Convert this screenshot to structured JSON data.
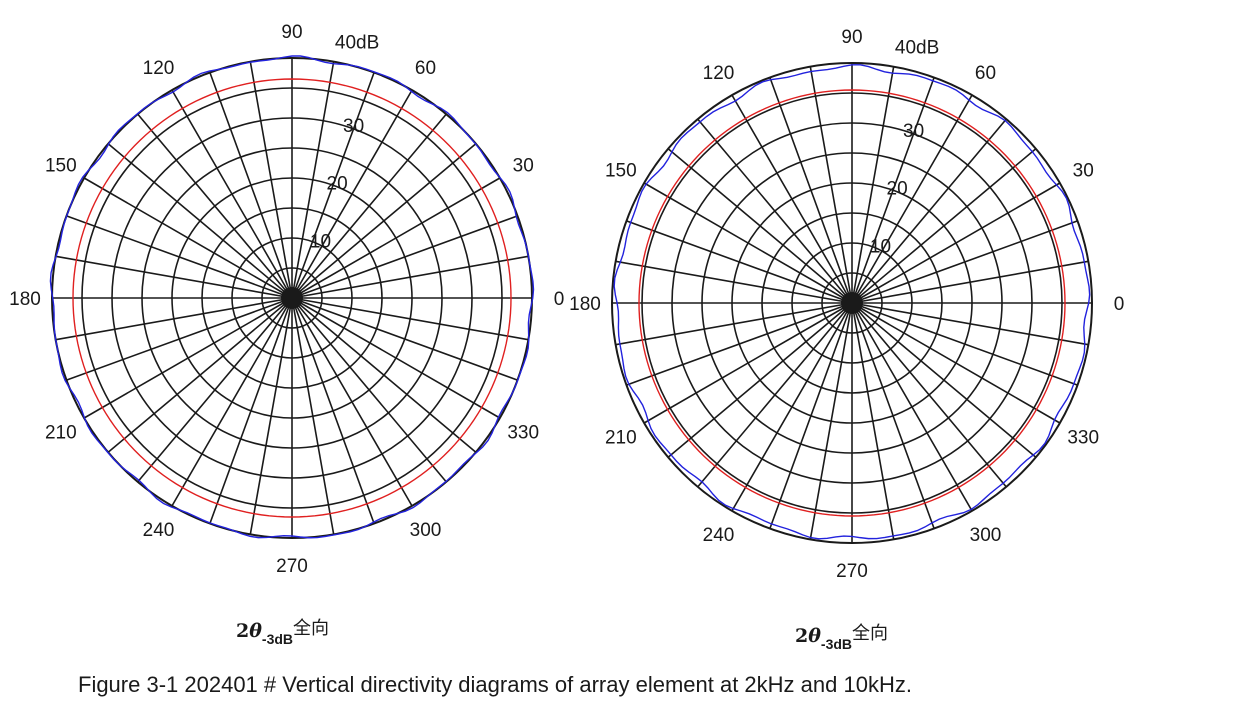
{
  "caption": "Figure 3-1 202401 # Vertical directivity diagrams of array element at 2kHz and 10kHz.",
  "chart_data": [
    {
      "type": "polar",
      "sublabel": {
        "prefix": "2",
        "theta": "θ",
        "subscript": "-3dB",
        "suffix": "全向"
      },
      "angle_ticks": [
        "0",
        "30",
        "60",
        "90",
        "120",
        "150",
        "180",
        "210",
        "240",
        "270",
        "300",
        "330"
      ],
      "radial_ticks": [
        "10",
        "20",
        "30",
        "40dB"
      ],
      "r_max": 40,
      "spoke_step_deg": 10,
      "series": [
        {
          "color": "#2222dd",
          "level_db": 40,
          "ripple_db": 0.25
        },
        {
          "color": "#e02020",
          "level_db": 36.5,
          "ripple_db": 0
        }
      ]
    },
    {
      "type": "polar",
      "sublabel": {
        "prefix": "2",
        "theta": "θ",
        "subscript": "-3dB",
        "suffix": "全向"
      },
      "angle_ticks": [
        "0",
        "30",
        "60",
        "90",
        "120",
        "150",
        "180",
        "210",
        "240",
        "270",
        "300",
        "330"
      ],
      "radial_ticks": [
        "10",
        "20",
        "30",
        "40dB"
      ],
      "r_max": 40,
      "spoke_step_deg": 10,
      "series": [
        {
          "color": "#2222dd",
          "level_db": 39.3,
          "ripple_db": 0.3
        },
        {
          "color": "#e02020",
          "level_db": 35.5,
          "ripple_db": 0
        }
      ]
    }
  ]
}
